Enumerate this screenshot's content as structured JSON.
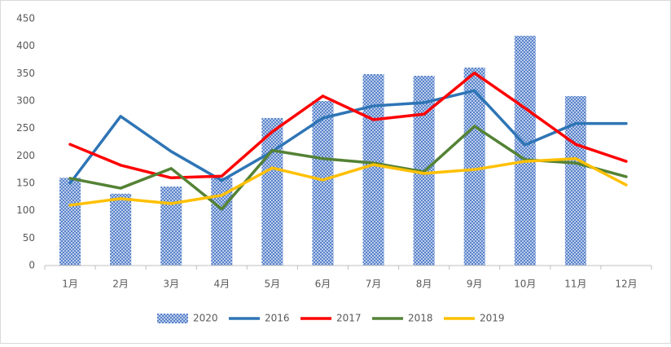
{
  "chart_data": {
    "type": "combo",
    "categories": [
      "1月",
      "2月",
      "3月",
      "4月",
      "5月",
      "6月",
      "7月",
      "8月",
      "9月",
      "10月",
      "11月",
      "12月"
    ],
    "series": [
      {
        "name": "2020",
        "type": "bar",
        "color": "#4472c4",
        "values": [
          160,
          131,
          144,
          160,
          269,
          300,
          349,
          346,
          361,
          419,
          309,
          null
        ]
      },
      {
        "name": "2016",
        "type": "line",
        "color": "#2e75b6",
        "values": [
          150,
          272,
          208,
          155,
          208,
          269,
          291,
          297,
          319,
          220,
          259,
          259
        ]
      },
      {
        "name": "2017",
        "type": "line",
        "color": "#ff0000",
        "values": [
          221,
          183,
          160,
          163,
          244,
          309,
          266,
          276,
          351,
          287,
          221,
          190
        ]
      },
      {
        "name": "2018",
        "type": "line",
        "color": "#548235",
        "values": [
          159,
          141,
          177,
          103,
          210,
          195,
          187,
          171,
          254,
          193,
          187,
          162
        ]
      },
      {
        "name": "2019",
        "type": "line",
        "color": "#ffc000",
        "values": [
          110,
          122,
          113,
          128,
          178,
          156,
          184,
          168,
          175,
          190,
          195,
          147
        ]
      }
    ],
    "ylim": [
      0,
      450
    ],
    "yticks": [
      0,
      50,
      100,
      150,
      200,
      250,
      300,
      350,
      400,
      450
    ],
    "grid": false,
    "legend": "bottom"
  }
}
